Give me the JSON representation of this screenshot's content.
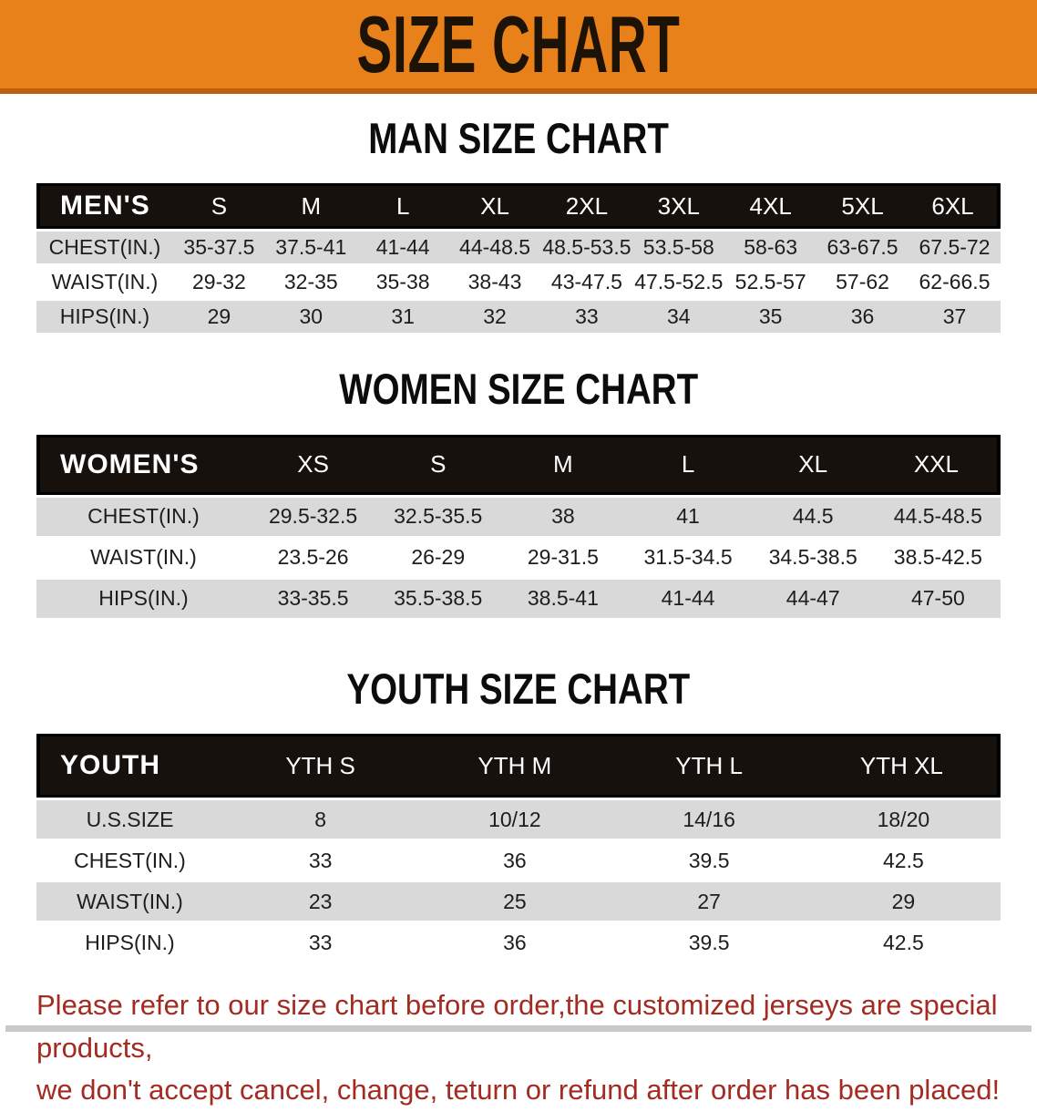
{
  "colors": {
    "banner_orange": "#e8811a",
    "banner_edge": "#bd5f0e",
    "header_black": "#17110d",
    "row_gray": "#d9d9d9",
    "warn_red": "#a32b22"
  },
  "banner": {
    "title": "SIZE CHART"
  },
  "sections": {
    "men": {
      "heading": "MAN SIZE CHART",
      "table": {
        "header_label": "MEN'S",
        "columns": [
          "S",
          "M",
          "L",
          "XL",
          "2XL",
          "3XL",
          "4XL",
          "5XL",
          "6XL"
        ],
        "rows": [
          {
            "label": "CHEST(IN.)",
            "values": [
              "35-37.5",
              "37.5-41",
              "41-44",
              "44-48.5",
              "48.5-53.5",
              "53.5-58",
              "58-63",
              "63-67.5",
              "67.5-72"
            ]
          },
          {
            "label": "WAIST(IN.)",
            "values": [
              "29-32",
              "32-35",
              "35-38",
              "38-43",
              "43-47.5",
              "47.5-52.5",
              "52.5-57",
              "57-62",
              "62-66.5"
            ]
          },
          {
            "label": "HIPS(IN.)",
            "values": [
              "29",
              "30",
              "31",
              "32",
              "33",
              "34",
              "35",
              "36",
              "37"
            ]
          }
        ]
      }
    },
    "women": {
      "heading": "WOMEN SIZE CHART",
      "table": {
        "header_label": "WOMEN'S",
        "columns": [
          "XS",
          "S",
          "M",
          "L",
          "XL",
          "XXL"
        ],
        "rows": [
          {
            "label": "CHEST(IN.)",
            "values": [
              "29.5-32.5",
              "32.5-35.5",
              "38",
              "41",
              "44.5",
              "44.5-48.5"
            ]
          },
          {
            "label": "WAIST(IN.)",
            "values": [
              "23.5-26",
              "26-29",
              "29-31.5",
              "31.5-34.5",
              "34.5-38.5",
              "38.5-42.5"
            ]
          },
          {
            "label": "HIPS(IN.)",
            "values": [
              "33-35.5",
              "35.5-38.5",
              "38.5-41",
              "41-44",
              "44-47",
              "47-50"
            ]
          }
        ]
      }
    },
    "youth": {
      "heading": "YOUTH SIZE CHART",
      "table": {
        "header_label": "YOUTH",
        "columns": [
          "YTH S",
          "YTH M",
          "YTH L",
          "YTH XL"
        ],
        "rows": [
          {
            "label": "U.S.SIZE",
            "values": [
              "8",
              "10/12",
              "14/16",
              "18/20"
            ]
          },
          {
            "label": "CHEST(IN.)",
            "values": [
              "33",
              "36",
              "39.5",
              "42.5"
            ]
          },
          {
            "label": "WAIST(IN.)",
            "values": [
              "23",
              "25",
              "27",
              "29"
            ]
          },
          {
            "label": "HIPS(IN.)",
            "values": [
              "33",
              "36",
              "39.5",
              "42.5"
            ]
          }
        ]
      }
    }
  },
  "footer": {
    "line1": "Please refer to our size chart before order,the customized jerseys are special products,",
    "line2": "we don't accept cancel, change, teturn or refund after order has been placed!"
  }
}
